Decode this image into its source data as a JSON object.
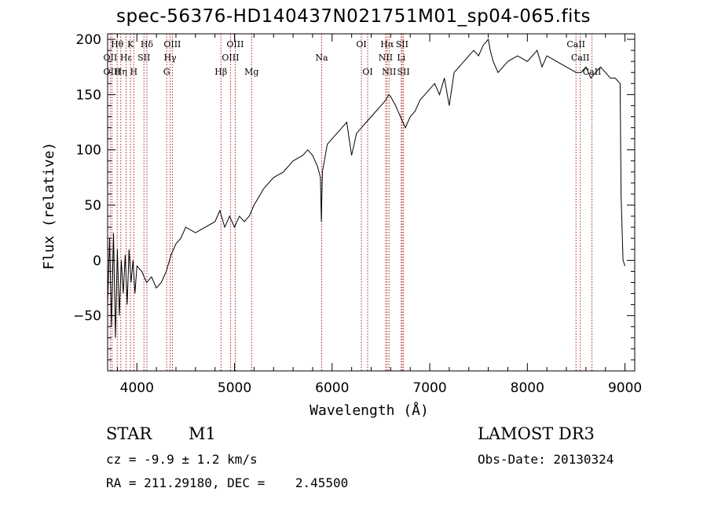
{
  "header": {
    "title": "spec-56376-HD140437N021751M01_sp04-065.fits"
  },
  "footer": {
    "object_class": "STAR",
    "subclass": "M1",
    "survey": "LAMOST DR3",
    "redshift_line": "cz = -9.9 ± 1.2 km/s",
    "obs_date": "Obs-Date: 20130324",
    "coords": "RA = 211.29180, DEC =    2.45500"
  },
  "chart_data": {
    "type": "line",
    "title": "spec-56376-HD140437N021751M01_sp04-065.fits",
    "xlabel": "Wavelength (Å)",
    "ylabel": "Flux (relative)",
    "xlim": [
      3700,
      9100
    ],
    "ylim": [
      -100,
      205
    ],
    "xticks": [
      4000,
      5000,
      6000,
      7000,
      8000,
      9000
    ],
    "yticks": [
      -50,
      0,
      50,
      100,
      150,
      200
    ],
    "ytick_labels": [
      "−50",
      "0",
      "50",
      "100",
      "150",
      "200"
    ],
    "line_color": "#000000",
    "marker_color": "#b22222",
    "series": [
      {
        "name": "flux",
        "x": [
          3700,
          3720,
          3740,
          3760,
          3780,
          3800,
          3820,
          3840,
          3860,
          3880,
          3900,
          3920,
          3940,
          3960,
          3980,
          4000,
          4050,
          4100,
          4150,
          4200,
          4250,
          4300,
          4350,
          4400,
          4450,
          4500,
          4600,
          4700,
          4800,
          4850,
          4900,
          4950,
          5000,
          5050,
          5100,
          5150,
          5200,
          5300,
          5400,
          5500,
          5600,
          5700,
          5750,
          5800,
          5850,
          5880,
          5890,
          5900,
          5920,
          5950,
          6000,
          6050,
          6100,
          6150,
          6200,
          6250,
          6300,
          6350,
          6400,
          6450,
          6500,
          6550,
          6580,
          6600,
          6650,
          6700,
          6750,
          6800,
          6850,
          6900,
          6950,
          7000,
          7050,
          7100,
          7150,
          7200,
          7250,
          7300,
          7350,
          7400,
          7450,
          7500,
          7550,
          7600,
          7620,
          7650,
          7700,
          7750,
          7800,
          7900,
          8000,
          8100,
          8150,
          8200,
          8300,
          8400,
          8500,
          8550,
          8600,
          8650,
          8700,
          8750,
          8800,
          8850,
          8900,
          8950,
          8960,
          8980,
          9000
        ],
        "y": [
          -40,
          20,
          -60,
          25,
          -70,
          10,
          -50,
          0,
          -30,
          5,
          -40,
          10,
          -20,
          0,
          -30,
          -5,
          -10,
          -20,
          -15,
          -25,
          -20,
          -10,
          5,
          15,
          20,
          30,
          25,
          30,
          35,
          45,
          30,
          40,
          30,
          40,
          35,
          40,
          50,
          65,
          75,
          80,
          90,
          95,
          100,
          95,
          85,
          75,
          35,
          80,
          90,
          105,
          110,
          115,
          120,
          125,
          95,
          115,
          120,
          125,
          130,
          135,
          140,
          145,
          150,
          148,
          140,
          130,
          120,
          130,
          135,
          145,
          150,
          155,
          160,
          150,
          165,
          140,
          170,
          175,
          180,
          185,
          190,
          185,
          195,
          200,
          190,
          180,
          170,
          175,
          180,
          185,
          180,
          190,
          175,
          185,
          180,
          175,
          170,
          170,
          175,
          165,
          170,
          175,
          170,
          165,
          165,
          160,
          60,
          0,
          -5
        ]
      }
    ],
    "lines": [
      {
        "label": "Hθ",
        "x": 3798,
        "row": 1
      },
      {
        "label": "OII",
        "x": 3727,
        "row": 2
      },
      {
        "label": "OIII",
        "x": 3745,
        "row": 3
      },
      {
        "label": "Hη",
        "x": 3835,
        "row": 3
      },
      {
        "label": "K",
        "x": 3934,
        "row": 1
      },
      {
        "label": "Hε",
        "x": 3889,
        "row": 2
      },
      {
        "label": "H",
        "x": 3968,
        "row": 3
      },
      {
        "label": "SII",
        "x": 4072,
        "row": 2
      },
      {
        "label": "Hδ",
        "x": 4102,
        "row": 1
      },
      {
        "label": "OIII",
        "x": 4363,
        "row": 1
      },
      {
        "label": "Hγ",
        "x": 4340,
        "row": 2
      },
      {
        "label": "G",
        "x": 4305,
        "row": 3
      },
      {
        "label": "Hβ",
        "x": 4861,
        "row": 3
      },
      {
        "label": "OIII",
        "x": 5007,
        "row": 1
      },
      {
        "label": "OIII",
        "x": 4959,
        "row": 2
      },
      {
        "label": "Mg",
        "x": 5175,
        "row": 3
      },
      {
        "label": "Na",
        "x": 5893,
        "row": 2
      },
      {
        "label": "OI",
        "x": 6300,
        "row": 1
      },
      {
        "label": "OI",
        "x": 6364,
        "row": 3
      },
      {
        "label": "Hα",
        "x": 6563,
        "row": 1
      },
      {
        "label": "NII",
        "x": 6548,
        "row": 2
      },
      {
        "label": "NII",
        "x": 6583,
        "row": 3
      },
      {
        "label": "SII",
        "x": 6717,
        "row": 1
      },
      {
        "label": "Li",
        "x": 6708,
        "row": 2
      },
      {
        "label": "SII",
        "x": 6731,
        "row": 3
      },
      {
        "label": "CaII",
        "x": 8498,
        "row": 1
      },
      {
        "label": "CaII",
        "x": 8542,
        "row": 2
      },
      {
        "label": "CaII",
        "x": 8662,
        "row": 3
      }
    ]
  }
}
